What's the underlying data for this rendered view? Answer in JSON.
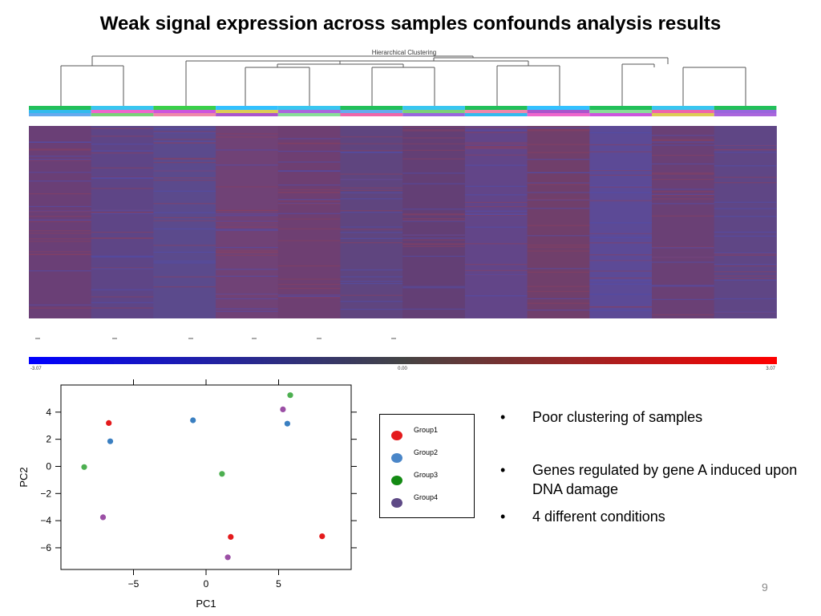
{
  "slide": {
    "title": "Weak signal expression across samples confounds analysis results",
    "page_number": "9"
  },
  "heatmap": {
    "dendrogram_title": "Hierarchical Clustering",
    "color_scale": {
      "min_label": "-3.07",
      "mid_label": "0.00",
      "max_label": "3.07",
      "low_color": "#0000ff",
      "mid_color": "#444444",
      "high_color": "#ff0000"
    }
  },
  "legend": {
    "items": [
      {
        "label": "Group1",
        "color": "#e41a1c"
      },
      {
        "label": "Group2",
        "color": "#4a86c8"
      },
      {
        "label": "Group3",
        "color": "#138a13"
      },
      {
        "label": "Group4",
        "color": "#5e4a86"
      }
    ]
  },
  "bullets": [
    "Poor clustering of samples",
    "Genes regulated by gene A induced upon DNA damage",
    "4 different conditions"
  ],
  "chart_data": {
    "type": "scatter",
    "xlabel": "PC1",
    "ylabel": "PC2",
    "xlim": [
      -10,
      10
    ],
    "ylim": [
      -7.6,
      6
    ],
    "xticks": [
      "−5",
      "0",
      "5"
    ],
    "yticks": [
      "4",
      "2",
      "0",
      "−2",
      "−4",
      "−6"
    ],
    "xtick_values": [
      -5,
      0,
      5
    ],
    "ytick_values": [
      4,
      2,
      0,
      -2,
      -4,
      -6
    ],
    "points": [
      {
        "x": -6.7,
        "y": 3.2,
        "group": "Group1",
        "color": "#e41a1c"
      },
      {
        "x": 1.7,
        "y": -5.2,
        "group": "Group1",
        "color": "#e41a1c"
      },
      {
        "x": 8.0,
        "y": -5.15,
        "group": "Group1",
        "color": "#e41a1c"
      },
      {
        "x": -6.6,
        "y": 1.85,
        "group": "Group2",
        "color": "#3a7fc1"
      },
      {
        "x": -0.9,
        "y": 3.4,
        "group": "Group2",
        "color": "#3a7fc1"
      },
      {
        "x": 5.6,
        "y": 3.15,
        "group": "Group2",
        "color": "#3a7fc1"
      },
      {
        "x": -8.4,
        "y": -0.05,
        "group": "Group3",
        "color": "#4caf50"
      },
      {
        "x": 1.1,
        "y": -0.55,
        "group": "Group3",
        "color": "#4caf50"
      },
      {
        "x": 5.8,
        "y": 5.25,
        "group": "Group3",
        "color": "#4caf50"
      },
      {
        "x": -7.1,
        "y": -3.75,
        "group": "Group4",
        "color": "#9b4fa5"
      },
      {
        "x": 1.5,
        "y": -6.7,
        "group": "Group4",
        "color": "#9b4fa5"
      },
      {
        "x": 5.3,
        "y": 4.2,
        "group": "Group4",
        "color": "#9b4fa5"
      }
    ]
  }
}
